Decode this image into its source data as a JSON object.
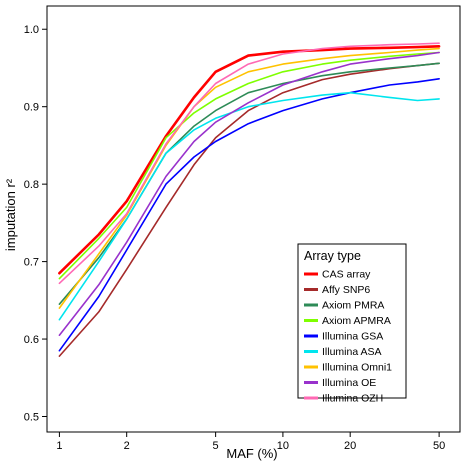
{
  "chart_data": {
    "type": "line",
    "title": "",
    "xlabel": "MAF (%)",
    "ylabel": "imputation r²",
    "x_scale": "log",
    "xlim": [
      0.88,
      62
    ],
    "ylim": [
      0.48,
      1.03
    ],
    "x_ticks": [
      1,
      2,
      5,
      10,
      20,
      50
    ],
    "y_ticks": [
      0.5,
      0.6,
      0.7,
      0.8,
      0.9,
      1.0
    ],
    "y_tick_labels": [
      "0.5",
      "0.6",
      "0.7",
      "0.8",
      "0.9",
      "1.0"
    ],
    "legend": {
      "title": "Array type",
      "position": "bottom-right"
    },
    "x": [
      1,
      1.5,
      2,
      3,
      4,
      5,
      7,
      10,
      15,
      20,
      30,
      40,
      50
    ],
    "series": [
      {
        "name": "CAS array",
        "color": "#ff0000",
        "width": 2.6,
        "values": [
          0.685,
          0.735,
          0.778,
          0.862,
          0.912,
          0.945,
          0.966,
          0.971,
          0.973,
          0.975,
          0.976,
          0.977,
          0.978
        ]
      },
      {
        "name": "Affy SNP6",
        "color": "#a52a2a",
        "width": 1.6,
        "values": [
          0.578,
          0.635,
          0.69,
          0.77,
          0.825,
          0.86,
          0.895,
          0.918,
          0.935,
          0.942,
          0.949,
          0.953,
          0.956
        ]
      },
      {
        "name": "Axiom PMRA",
        "color": "#2e8b57",
        "width": 1.6,
        "values": [
          0.645,
          0.705,
          0.755,
          0.84,
          0.875,
          0.895,
          0.918,
          0.93,
          0.94,
          0.945,
          0.95,
          0.953,
          0.956
        ]
      },
      {
        "name": "Axiom APMRA",
        "color": "#7fff00",
        "width": 1.6,
        "values": [
          0.678,
          0.73,
          0.77,
          0.86,
          0.892,
          0.91,
          0.93,
          0.945,
          0.955,
          0.96,
          0.965,
          0.968,
          0.97
        ]
      },
      {
        "name": "Illumina GSA",
        "color": "#0000ff",
        "width": 1.6,
        "values": [
          0.585,
          0.655,
          0.715,
          0.8,
          0.835,
          0.855,
          0.878,
          0.895,
          0.91,
          0.918,
          0.928,
          0.932,
          0.936
        ]
      },
      {
        "name": "Illumina ASA",
        "color": "#00e5ee",
        "width": 1.6,
        "values": [
          0.625,
          0.7,
          0.755,
          0.84,
          0.87,
          0.885,
          0.9,
          0.908,
          0.915,
          0.918,
          0.912,
          0.908,
          0.91
        ]
      },
      {
        "name": "Illumina Omni1",
        "color": "#ffc200",
        "width": 1.6,
        "values": [
          0.64,
          0.71,
          0.76,
          0.85,
          0.9,
          0.925,
          0.945,
          0.955,
          0.962,
          0.966,
          0.97,
          0.973,
          0.975
        ]
      },
      {
        "name": "Illumina OE",
        "color": "#9932cc",
        "width": 1.6,
        "values": [
          0.605,
          0.67,
          0.725,
          0.81,
          0.855,
          0.88,
          0.905,
          0.928,
          0.945,
          0.955,
          0.962,
          0.966,
          0.97
        ]
      },
      {
        "name": "Illumina OZH",
        "color": "#ff69b4",
        "width": 1.6,
        "values": [
          0.672,
          0.72,
          0.762,
          0.852,
          0.9,
          0.93,
          0.955,
          0.968,
          0.975,
          0.978,
          0.98,
          0.981,
          0.982
        ]
      }
    ]
  }
}
